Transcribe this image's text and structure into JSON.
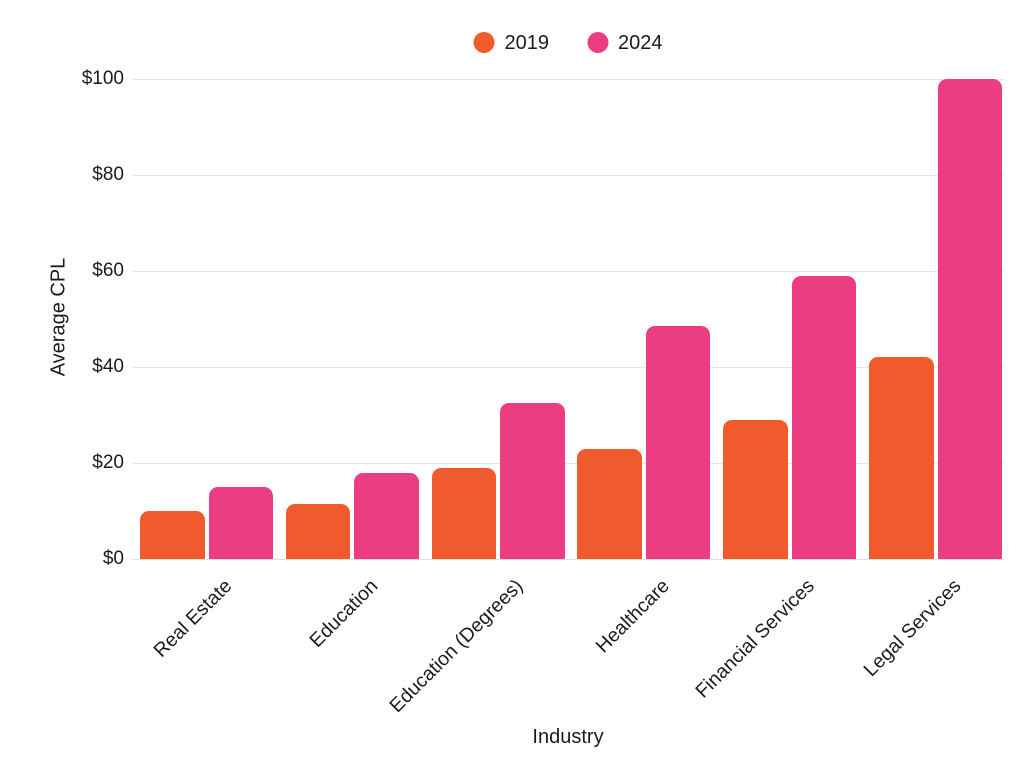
{
  "chart_data": {
    "type": "bar",
    "title": "",
    "categories": [
      "Real Estate",
      "Education",
      "Education (Degrees)",
      "Healthcare",
      "Financial Services",
      "Legal Services"
    ],
    "series": [
      {
        "name": "2019",
        "color": "#F05A2C",
        "values": [
          10,
          11.5,
          19,
          23,
          29,
          42
        ]
      },
      {
        "name": "2024",
        "color": "#EC3D82",
        "values": [
          15,
          18,
          32.5,
          48.5,
          59,
          100
        ]
      }
    ],
    "xlabel": "Industry",
    "ylabel": "Average CPL",
    "ylim": [
      0,
      100
    ],
    "ytick_values": [
      0,
      20,
      40,
      60,
      80,
      100
    ],
    "ytick_labels": [
      "$0",
      "$20",
      "$40",
      "$60",
      "$80",
      "$100"
    ],
    "grid": true,
    "legend_position": "top-center",
    "colors": {
      "background": "#ffffff",
      "text": "#1b1b1b",
      "gridline": "#e7e7e7"
    }
  }
}
